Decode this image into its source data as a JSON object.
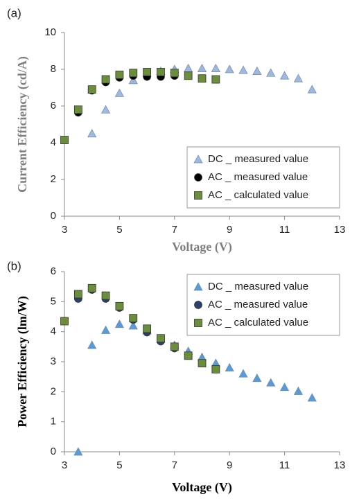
{
  "chart_data": [
    {
      "type": "scatter",
      "label": "(a)",
      "x_label": "Voltage (V)",
      "y_label": "Current Efficiency (cd/A)",
      "xlim": [
        3,
        13
      ],
      "xticks": [
        3,
        5,
        7,
        9,
        11,
        13
      ],
      "ylim": [
        0,
        10
      ],
      "yticks": [
        0,
        2,
        4,
        6,
        8,
        10
      ],
      "legend": "lower right",
      "series": [
        {
          "name": "DC _ measured value",
          "color": "#9fb8dc",
          "marker": "triangle",
          "x": [
            4,
            4.5,
            5,
            5.5,
            6,
            6.5,
            7,
            7.5,
            8,
            8.5,
            9,
            9.5,
            10,
            10.5,
            11,
            11.5,
            12
          ],
          "values": [
            4.5,
            5.8,
            6.7,
            7.4,
            7.8,
            7.9,
            8.0,
            8.05,
            8.05,
            8.05,
            8.0,
            7.95,
            7.9,
            7.8,
            7.65,
            7.5,
            6.9
          ]
        },
        {
          "name": "AC _ measured value",
          "color": "#000000",
          "marker": "circle",
          "x": [
            3.5,
            4,
            4.5,
            5,
            5.5,
            6,
            6.5,
            7
          ],
          "values": [
            5.65,
            6.85,
            7.3,
            7.55,
            7.65,
            7.6,
            7.6,
            7.65
          ]
        },
        {
          "name": "AC _ calculated value",
          "color": "#6b8e3a",
          "marker": "square",
          "x": [
            3,
            3.5,
            4,
            4.5,
            5,
            5.5,
            6,
            6.5,
            7,
            7.5,
            8,
            8.5
          ],
          "values": [
            4.15,
            5.8,
            6.9,
            7.45,
            7.7,
            7.8,
            7.85,
            7.85,
            7.8,
            7.65,
            7.5,
            7.45
          ]
        }
      ]
    },
    {
      "type": "scatter",
      "label": "(b)",
      "x_label": "Voltage (V)",
      "y_label": "Power Efficiency (lm/W)",
      "xlim": [
        3,
        13
      ],
      "xticks": [
        3,
        5,
        7,
        9,
        11,
        13
      ],
      "ylim": [
        0,
        6
      ],
      "yticks": [
        0,
        1,
        2,
        3,
        4,
        5,
        6
      ],
      "legend": "upper right",
      "series": [
        {
          "name": "DC _ measured value",
          "color": "#5b9bd5",
          "marker": "triangle",
          "x": [
            3.5,
            4,
            4.5,
            5,
            5.5,
            6,
            6.5,
            7,
            7.5,
            8,
            8.5,
            9,
            9.5,
            10,
            10.5,
            11,
            11.5,
            12
          ],
          "values": [
            0,
            3.55,
            4.05,
            4.25,
            4.2,
            4.05,
            3.75,
            3.55,
            3.35,
            3.15,
            2.95,
            2.8,
            2.6,
            2.45,
            2.3,
            2.15,
            2.02,
            1.8
          ]
        },
        {
          "name": "AC _ measured value",
          "color": "#2e3f6e",
          "marker": "circle",
          "x": [
            3.5,
            4,
            4.5,
            5,
            5.5,
            6,
            6.5,
            7
          ],
          "values": [
            5.1,
            5.4,
            5.1,
            4.8,
            4.4,
            3.98,
            3.68,
            3.45
          ]
        },
        {
          "name": "AC _ calculated value",
          "color": "#6b8e3a",
          "marker": "square",
          "x": [
            3,
            3.5,
            4,
            4.5,
            5,
            5.5,
            6,
            6.5,
            7,
            7.5,
            8,
            8.5
          ],
          "values": [
            4.35,
            5.25,
            5.45,
            5.2,
            4.85,
            4.45,
            4.1,
            3.78,
            3.5,
            3.2,
            2.95,
            2.75
          ]
        }
      ]
    }
  ]
}
